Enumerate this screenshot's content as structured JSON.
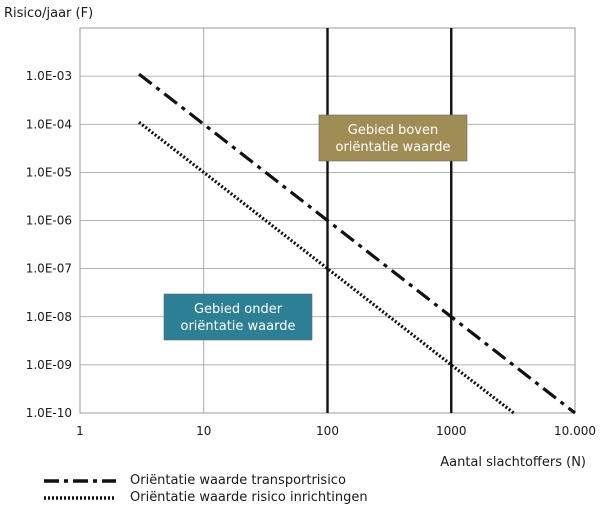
{
  "chart_data": {
    "type": "line",
    "title": "",
    "ylabel": "Risico/jaar (F)",
    "xlabel": "Aantal slachtoffers (N)",
    "x_scale": "log",
    "y_scale": "log",
    "xlim": [
      1,
      10000
    ],
    "ylim": [
      1e-10,
      0.01
    ],
    "grid": true,
    "x_ticks": [
      1,
      10,
      100,
      1000,
      10000
    ],
    "x_tick_labels": [
      "1",
      "10",
      "100",
      "1000",
      "10.000"
    ],
    "y_ticks": [
      1e-10,
      1e-09,
      1e-08,
      1e-07,
      1e-06,
      1e-05,
      0.0001,
      0.001
    ],
    "y_tick_labels": [
      "1.0E-10",
      "1.0E-09",
      "1.0E-08",
      "1.0E-07",
      "1.0E-06",
      "1.0E-05",
      "1.0E-04",
      "1.0E-03"
    ],
    "vertical_lines": [
      100,
      1000
    ],
    "series": [
      {
        "name": "Oriëntatie  waarde transportrisico",
        "style": "dash-dot",
        "color": "#111111",
        "x": [
          3,
          10,
          100,
          1000,
          10000
        ],
        "y": [
          0.0011,
          0.0001,
          1e-06,
          1e-08,
          1e-10
        ]
      },
      {
        "name": "Oriëntatie waarde risico inrichtingen",
        "style": "dotted",
        "color": "#111111",
        "x": [
          3,
          10,
          100,
          1000,
          3200
        ],
        "y": [
          0.00011,
          1e-05,
          1e-07,
          1e-09,
          1e-10
        ]
      }
    ],
    "annotations": [
      {
        "text": [
          "Gebied boven",
          "oriëntatie waarde"
        ],
        "fill": "#a08d55",
        "text_color": "#ffffff"
      },
      {
        "text": [
          "Gebied onder",
          "oriëntatie waarde"
        ],
        "fill": "#2c7f95",
        "text_color": "#ffffff"
      }
    ],
    "legend_position": "bottom-left"
  }
}
